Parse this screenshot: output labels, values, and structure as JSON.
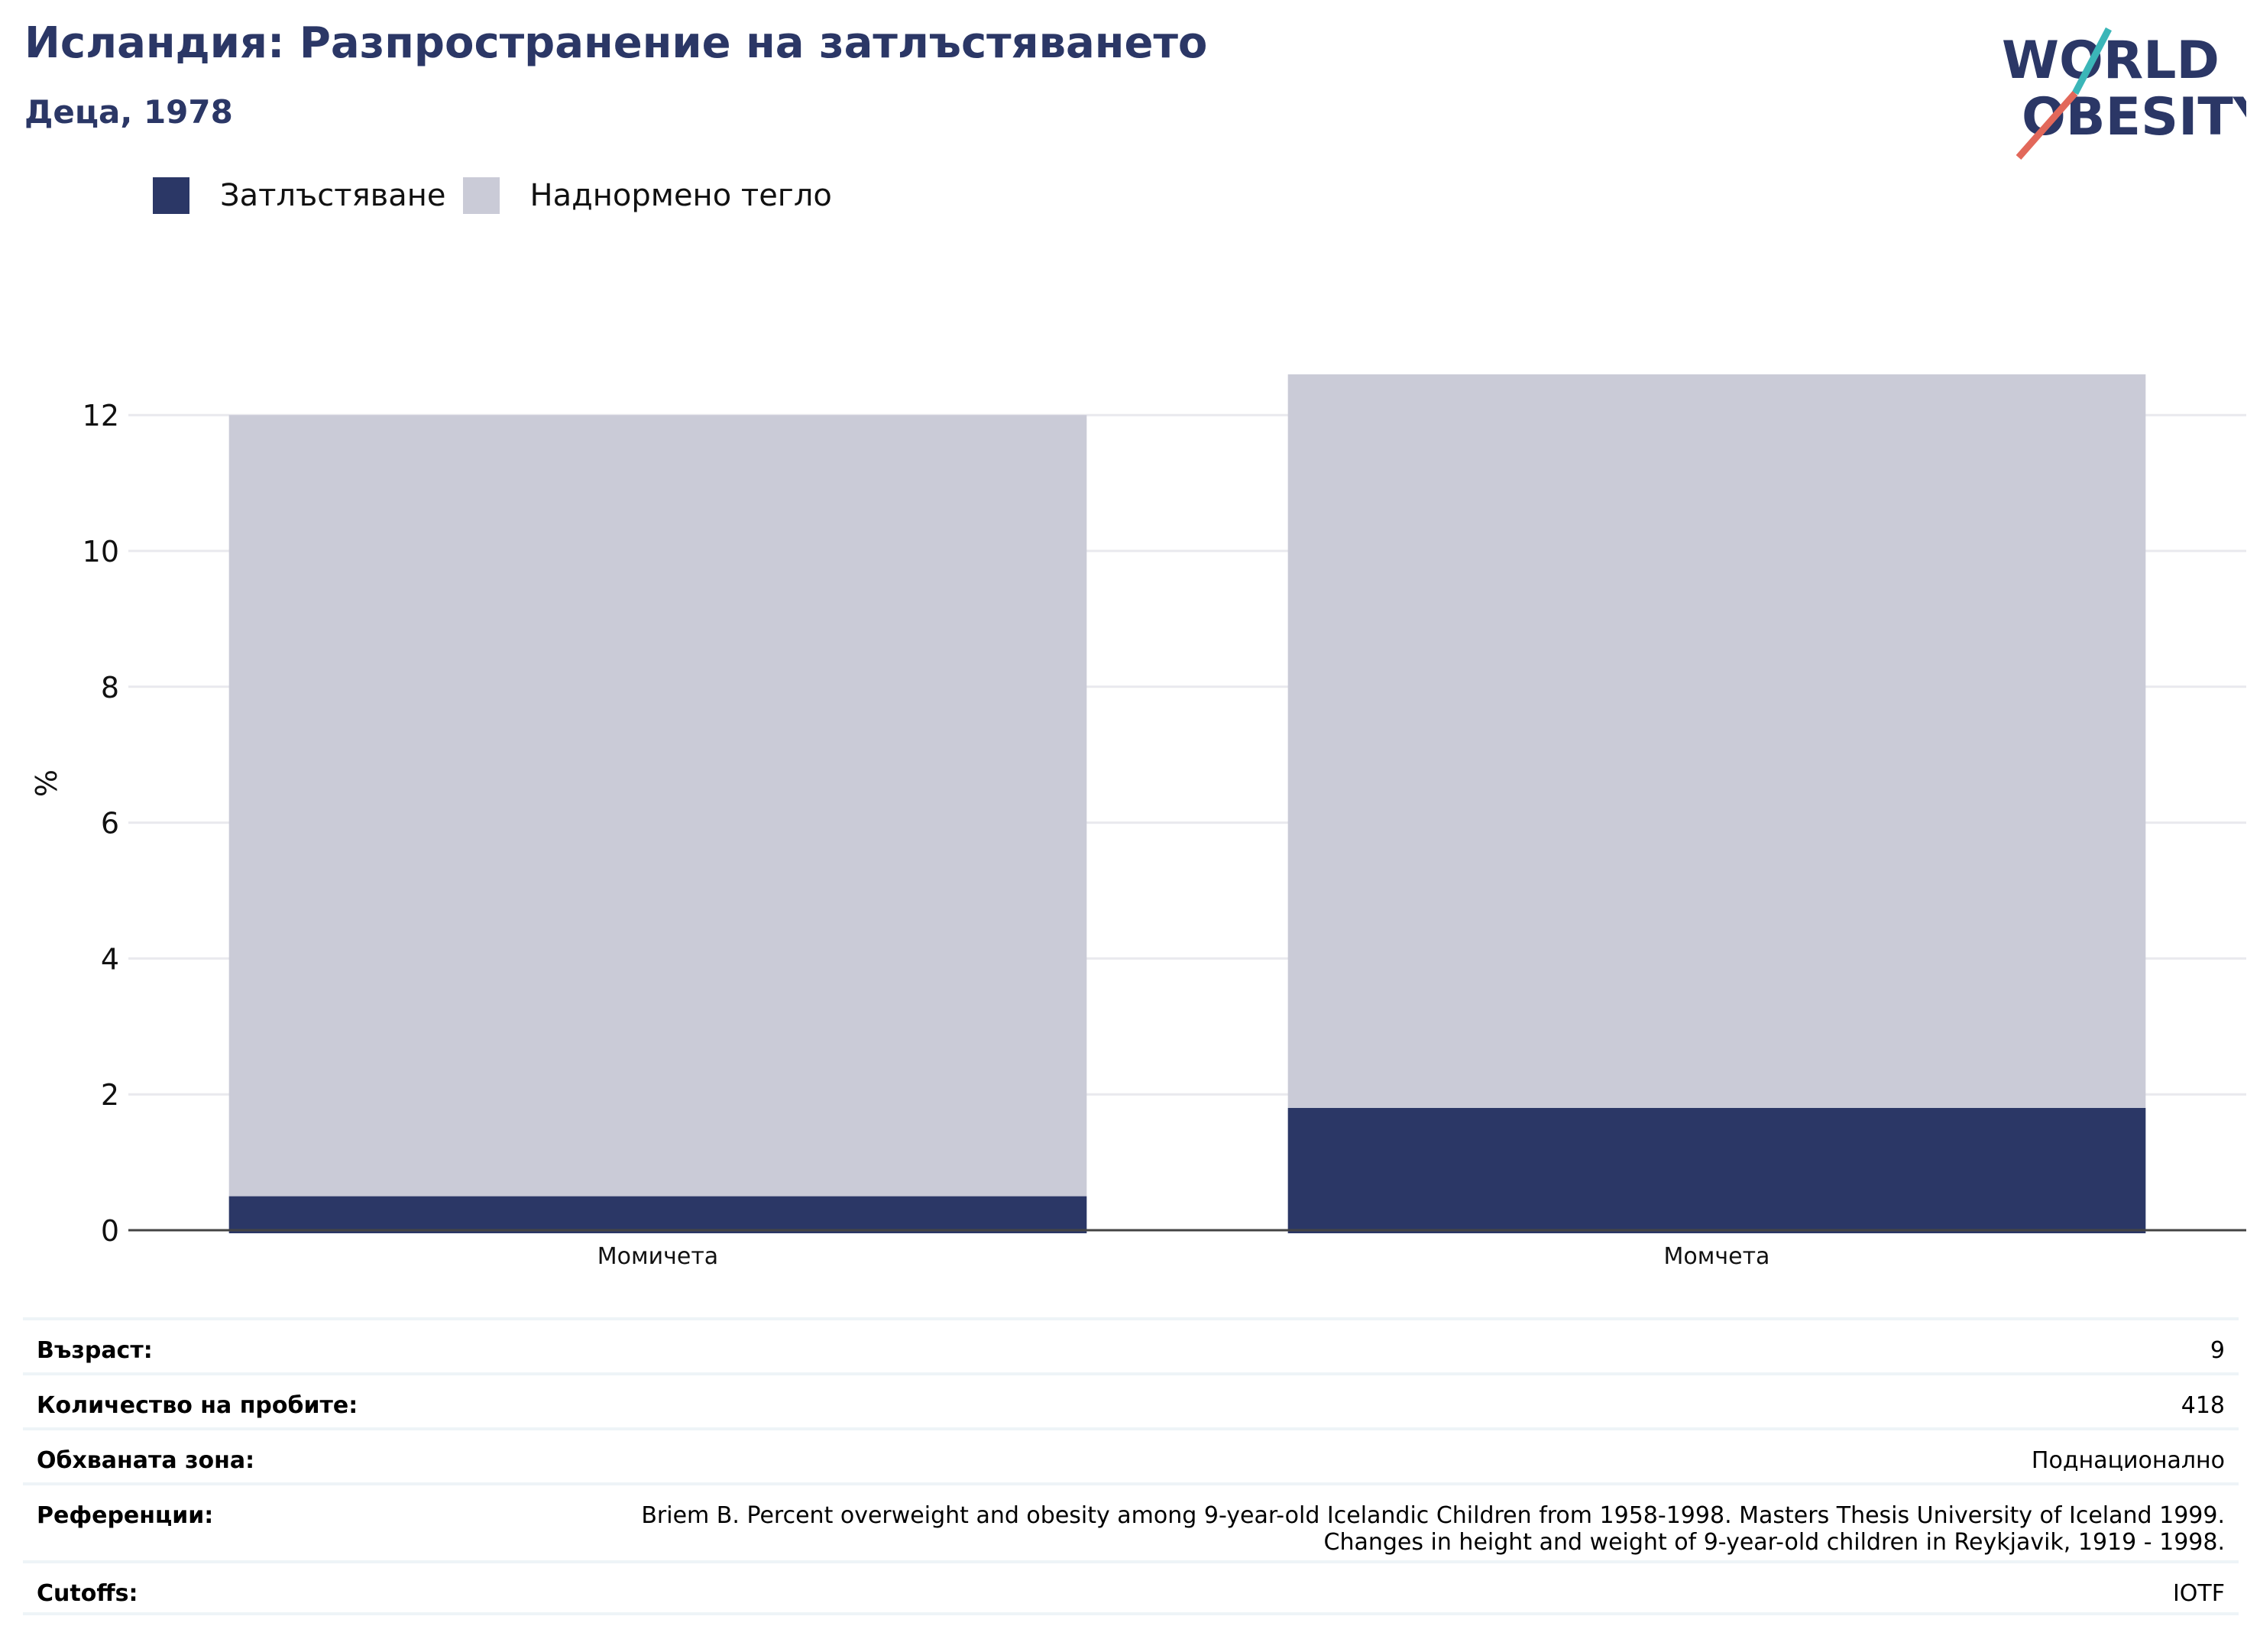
{
  "header": {
    "title": "Исландия: Разпространение на затлъстяването",
    "subtitle": "Деца, 1978"
  },
  "logo": {
    "line1": "WORLD",
    "line2": "OBESITY",
    "accent_teal": "#3bb6b8",
    "accent_coral": "#e2685a"
  },
  "legend": [
    {
      "label": "Затлъстяване",
      "color": "#2b3766"
    },
    {
      "label": "Наднормено тегло",
      "color": "#cacbd7"
    }
  ],
  "chart_data": {
    "type": "bar",
    "stacked": true,
    "categories": [
      "Момичета",
      "Момчета"
    ],
    "series": [
      {
        "name": "Затлъстяване",
        "values": [
          0.5,
          1.8
        ],
        "color": "#2b3766"
      },
      {
        "name": "Наднормено тегло",
        "values": [
          11.5,
          10.8
        ],
        "color": "#cacbd7"
      }
    ],
    "ylabel": "%",
    "ylim": [
      0,
      12.6
    ],
    "yticks": [
      0,
      2,
      4,
      6,
      8,
      10,
      12
    ],
    "grid": true
  },
  "info": [
    {
      "key": "Възраст:",
      "value": "9"
    },
    {
      "key": "Количество на пробите:",
      "value": "418"
    },
    {
      "key": "Обхваната зона:",
      "value": "Поднационално"
    },
    {
      "key": "Референции:",
      "value": "Briem B. Percent overweight and obesity among 9-year-old Icelandic Children from 1958-1998. Masters Thesis University of Iceland 1999.\nChanges in height and weight of 9-year-old children in Reykjavik, 1919 - 1998."
    },
    {
      "key": "Cutoffs:",
      "value": "IOTF"
    }
  ]
}
